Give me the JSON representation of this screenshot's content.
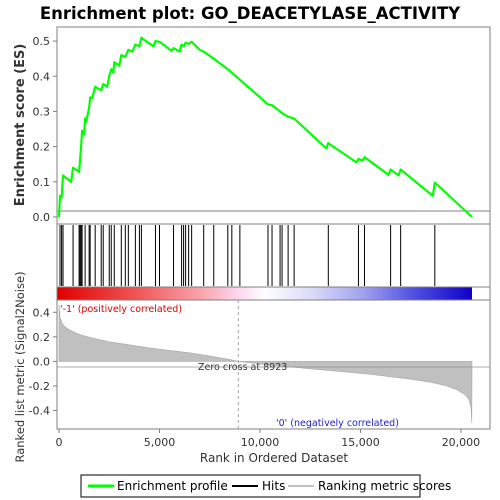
{
  "chart_data": {
    "type": "line",
    "title": "Enrichment plot: GO_DEACETYLASE_ACTIVITY",
    "x_axis": {
      "label": "Rank in Ordered Dataset",
      "range": [
        0,
        21500
      ],
      "ticks": [
        0,
        5000,
        10000,
        15000,
        20000
      ],
      "tick_labels": [
        "0",
        "5,000",
        "10,000",
        "15,000",
        "20,000"
      ]
    },
    "panels": {
      "enrichment": {
        "ylabel": "Enrichment score (ES)",
        "ylim": [
          -0.02,
          0.54
        ],
        "yticks": [
          0.0,
          0.1,
          0.2,
          0.3,
          0.4,
          0.5
        ],
        "ytick_labels": [
          "0.0",
          "0.1",
          "0.2",
          "0.3",
          "0.4",
          "0.5"
        ],
        "zero_line": true
      },
      "metric": {
        "ylabel": "Ranked list metric (Signal2Noise)",
        "ylim": [
          -0.55,
          0.5
        ],
        "yticks": [
          -0.4,
          -0.2,
          0.0,
          0.2,
          0.4
        ],
        "ytick_labels": [
          "-0.4",
          "-0.2",
          "0.0",
          "0.2",
          "0.4"
        ],
        "zero_cross_label": "Zero cross at 8923",
        "zero_cross": 8923,
        "positive_label": "'-1' (positively correlated)",
        "negative_label": "'0' (negatively correlated)",
        "values_x": [
          0,
          50,
          150,
          300,
          500,
          800,
          1200,
          1800,
          2500,
          3500,
          4500,
          5500,
          6500,
          7500,
          8500,
          8923,
          9500,
          10500,
          11500,
          12500,
          13500,
          14500,
          15500,
          16500,
          17500,
          18500,
          19200,
          19800,
          20200,
          20400,
          20500,
          20540
        ],
        "values_y": [
          0.46,
          0.36,
          0.31,
          0.28,
          0.26,
          0.235,
          0.21,
          0.185,
          0.16,
          0.135,
          0.11,
          0.09,
          0.07,
          0.045,
          0.015,
          0.0,
          -0.01,
          -0.03,
          -0.045,
          -0.06,
          -0.075,
          -0.09,
          -0.105,
          -0.125,
          -0.145,
          -0.17,
          -0.195,
          -0.23,
          -0.27,
          -0.31,
          -0.38,
          -0.5
        ]
      }
    },
    "series": [
      {
        "name": "Enrichment profile",
        "color": "#00ff00",
        "x": [
          0,
          50,
          130,
          200,
          600,
          700,
          1000,
          1050,
          1100,
          1150,
          1250,
          1300,
          1350,
          1500,
          1550,
          1650,
          1800,
          2100,
          2200,
          2400,
          2500,
          2600,
          2700,
          2750,
          3000,
          3100,
          3300,
          3450,
          3650,
          3800,
          4000,
          4100,
          4200,
          4700,
          4800,
          5000,
          5200,
          5600,
          5700,
          6000,
          6100,
          6200,
          6300,
          6450,
          6600,
          7000,
          7200,
          7700,
          8400,
          8600,
          9000,
          10400,
          10600,
          11000,
          11100,
          11400,
          11700,
          13300,
          13400,
          14800,
          14900,
          15100,
          15200,
          16400,
          16500,
          16900,
          17000,
          18600,
          18700,
          20550
        ],
        "y": [
          0.0,
          0.06,
          0.055,
          0.118,
          0.1,
          0.14,
          0.128,
          0.165,
          0.2,
          0.245,
          0.235,
          0.28,
          0.27,
          0.31,
          0.34,
          0.338,
          0.37,
          0.36,
          0.378,
          0.37,
          0.4,
          0.42,
          0.41,
          0.44,
          0.43,
          0.46,
          0.455,
          0.475,
          0.47,
          0.49,
          0.485,
          0.51,
          0.505,
          0.485,
          0.5,
          0.498,
          0.49,
          0.472,
          0.48,
          0.47,
          0.49,
          0.485,
          0.495,
          0.492,
          0.498,
          0.475,
          0.47,
          0.45,
          0.42,
          0.41,
          0.39,
          0.32,
          0.318,
          0.3,
          0.295,
          0.285,
          0.28,
          0.195,
          0.21,
          0.155,
          0.165,
          0.16,
          0.17,
          0.12,
          0.135,
          0.118,
          0.135,
          0.06,
          0.098,
          0.0
        ]
      },
      {
        "name": "Hits",
        "color": "#000000",
        "x": [
          50,
          130,
          200,
          700,
          1000,
          1050,
          1100,
          1150,
          1300,
          1500,
          1550,
          1800,
          2100,
          2200,
          2500,
          2600,
          2750,
          3100,
          3300,
          3450,
          3800,
          4000,
          4100,
          4800,
          5000,
          5700,
          6100,
          6200,
          6300,
          6450,
          6600,
          7200,
          7700,
          8400,
          8600,
          9000,
          10400,
          10600,
          11000,
          11100,
          11400,
          11700,
          13400,
          14900,
          15200,
          16500,
          17000,
          18700
        ]
      },
      {
        "name": "Ranking metric scores",
        "color": "#c0c0c0"
      }
    ]
  }
}
